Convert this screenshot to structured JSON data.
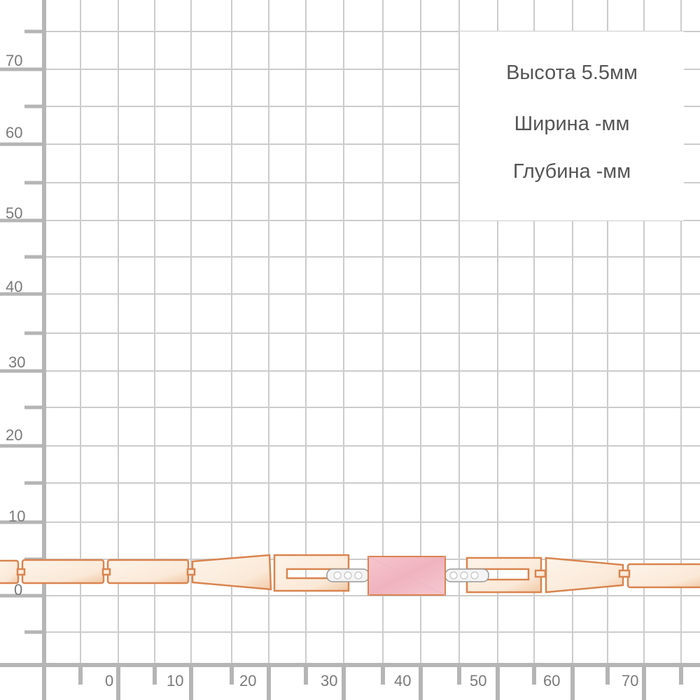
{
  "y_axis_labels": [
    "70",
    "60",
    "50",
    "40",
    "30",
    "20",
    "10",
    "0"
  ],
  "x_axis_labels": [
    "0",
    "10",
    "20",
    "30",
    "40",
    "50",
    "60",
    "70"
  ],
  "dimensions": {
    "height": "Высота  5.5мм",
    "width": "Ширина  -мм",
    "depth": "Глубина  -мм"
  },
  "colors": {
    "grid": "#cccccc",
    "axis": "#b5b5b5",
    "gold": "#e8a070",
    "gold_fill": "#fbeee2",
    "stone": "#f2b8c4"
  }
}
